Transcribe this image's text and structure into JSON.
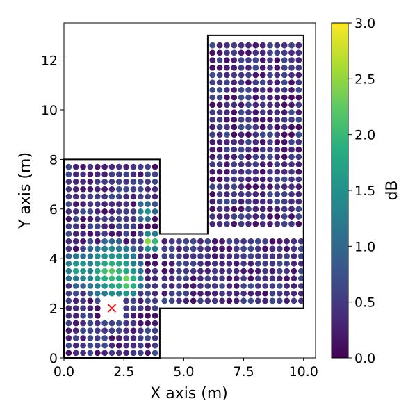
{
  "chart_data": {
    "type": "scatter",
    "title": "",
    "xlabel": "X axis (m)",
    "ylabel": "Y axis (m)",
    "xlim": [
      0,
      10.5
    ],
    "ylim": [
      0,
      13.5
    ],
    "xticks": [
      "0.0",
      "2.5",
      "5.0",
      "7.5",
      "10.0"
    ],
    "yticks": [
      "0",
      "2",
      "4",
      "6",
      "8",
      "10",
      "12"
    ],
    "colormap": "viridis",
    "colorbar": {
      "label": "dB",
      "range": [
        0,
        3
      ],
      "ticks": [
        "0.0",
        "0.5",
        "1.0",
        "1.5",
        "2.0",
        "2.5",
        "3.0"
      ]
    },
    "grid": false,
    "room_outline": [
      [
        0,
        0
      ],
      [
        4,
        0
      ],
      [
        4,
        2
      ],
      [
        10,
        2
      ],
      [
        10,
        13
      ],
      [
        6,
        13
      ],
      [
        6,
        5
      ],
      [
        4,
        5
      ],
      [
        4,
        8
      ],
      [
        0,
        8
      ]
    ],
    "source_marker": {
      "x": 2,
      "y": 2,
      "symbol": "x",
      "color": "#e41a1c"
    },
    "point_regions": [
      {
        "x_start": 0.2,
        "x_end": 3.8,
        "y_start": 0.2,
        "y_end": 7.8,
        "step": 0.3
      },
      {
        "x_start": 4.2,
        "x_end": 9.9,
        "y_start": 2.3,
        "y_end": 4.7,
        "step": 0.3
      },
      {
        "x_start": 6.2,
        "x_end": 9.8,
        "y_start": 5.4,
        "y_end": 12.8,
        "step": 0.3
      }
    ],
    "hotspots": [
      {
        "x": 2.0,
        "y": 3.5,
        "value": 2.3,
        "radius": 1.3
      },
      {
        "x": 2.6,
        "y": 3.1,
        "value": 2.6,
        "radius": 0.7
      },
      {
        "x": 3.6,
        "y": 4.7,
        "value": 2.9,
        "radius": 0.4
      },
      {
        "x": 3.4,
        "y": 5.9,
        "value": 1.7,
        "radius": 0.5
      },
      {
        "x": 0.6,
        "y": 3.6,
        "value": 1.9,
        "radius": 0.8
      }
    ],
    "background_value_range": [
      0.1,
      0.7
    ]
  }
}
